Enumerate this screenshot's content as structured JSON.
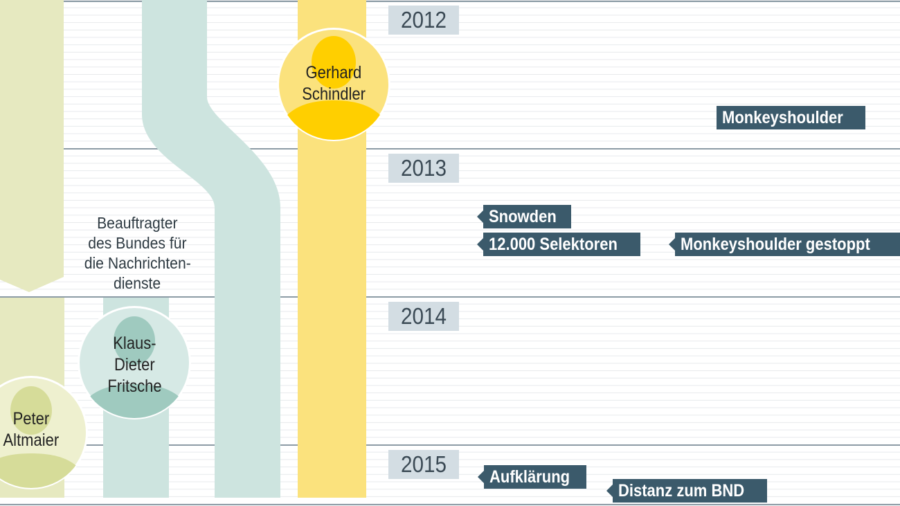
{
  "years": [
    "2012",
    "2013",
    "2014",
    "2015"
  ],
  "caption": {
    "line1": "Beauftragter",
    "line2": "des Bundes für",
    "line3": "die Nachrichten-",
    "line4": "dienste"
  },
  "people": {
    "schindler": {
      "first": "Gerhard",
      "last": "Schindler"
    },
    "fritsche": {
      "first": "Klaus-",
      "middle": "Dieter",
      "last": "Fritsche"
    },
    "altmaier": {
      "first": "Peter",
      "last": "Altmaier"
    }
  },
  "events": {
    "monkeyshoulder": "Monkeyshoulder",
    "snowden": "Snowden",
    "selektoren": "12.000 Selektoren",
    "monkeyshoulder_gestoppt": "Monkeyshoulder gestoppt",
    "aufklaerung": "Aufklärung",
    "distanz": "Distanz zum BND"
  },
  "colors": {
    "event_bg": "#3b5a6b",
    "year_bg": "#d3dde3",
    "schindler": "#ffd400",
    "fritsche": "#a9cfc7",
    "altmaier": "#dfe3ab"
  }
}
